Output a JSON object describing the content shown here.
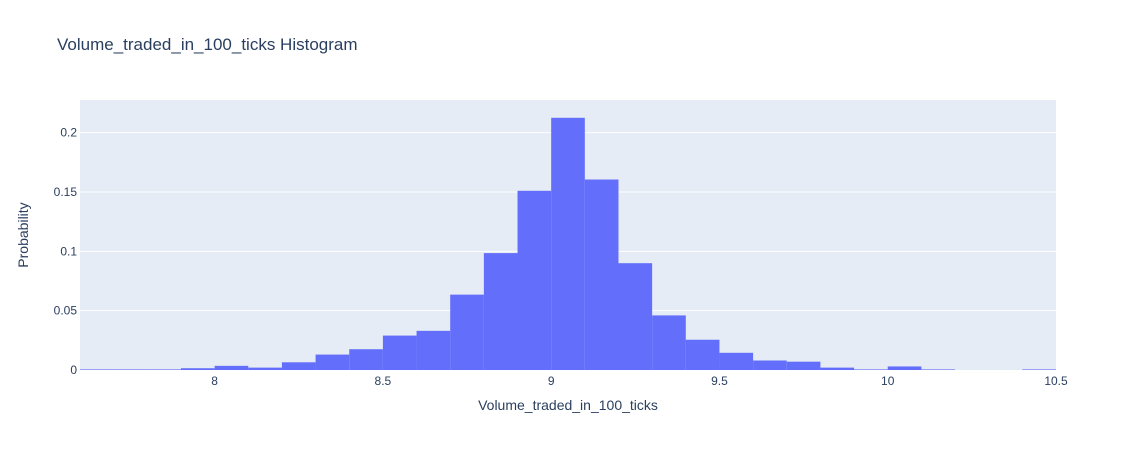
{
  "chart_data": {
    "type": "bar",
    "histnorm": "probability",
    "title": "Volume_traded_in_100_ticks Histogram",
    "xlabel": "Volume_traded_in_100_ticks",
    "ylabel": "Probability",
    "xlim": [
      7.6,
      10.5
    ],
    "ylim": [
      0,
      0.2275
    ],
    "x_ticks": [
      8,
      8.5,
      9,
      9.5,
      10,
      10.5
    ],
    "x_tick_labels": [
      "8",
      "8.5",
      "9",
      "9.5",
      "10",
      "10.5"
    ],
    "y_ticks": [
      0,
      0.05,
      0.1,
      0.15,
      0.2
    ],
    "y_tick_labels": [
      "0",
      "0.05",
      "0.1",
      "0.15",
      "0.2"
    ],
    "bins": [
      {
        "x0": 7.6,
        "x1": 7.7,
        "y": 0.0005
      },
      {
        "x0": 7.7,
        "x1": 7.8,
        "y": 0.0005
      },
      {
        "x0": 7.8,
        "x1": 7.9,
        "y": 0.0005
      },
      {
        "x0": 7.9,
        "x1": 8.0,
        "y": 0.0015
      },
      {
        "x0": 8.0,
        "x1": 8.1,
        "y": 0.0035
      },
      {
        "x0": 8.1,
        "x1": 8.2,
        "y": 0.002
      },
      {
        "x0": 8.2,
        "x1": 8.3,
        "y": 0.0065
      },
      {
        "x0": 8.3,
        "x1": 8.4,
        "y": 0.013
      },
      {
        "x0": 8.4,
        "x1": 8.5,
        "y": 0.0175
      },
      {
        "x0": 8.5,
        "x1": 8.6,
        "y": 0.029
      },
      {
        "x0": 8.6,
        "x1": 8.7,
        "y": 0.033
      },
      {
        "x0": 8.7,
        "x1": 8.8,
        "y": 0.0635
      },
      {
        "x0": 8.8,
        "x1": 8.9,
        "y": 0.0985
      },
      {
        "x0": 8.9,
        "x1": 9.0,
        "y": 0.151
      },
      {
        "x0": 9.0,
        "x1": 9.1,
        "y": 0.2125
      },
      {
        "x0": 9.1,
        "x1": 9.2,
        "y": 0.1605
      },
      {
        "x0": 9.2,
        "x1": 9.3,
        "y": 0.09
      },
      {
        "x0": 9.3,
        "x1": 9.4,
        "y": 0.046
      },
      {
        "x0": 9.4,
        "x1": 9.5,
        "y": 0.0255
      },
      {
        "x0": 9.5,
        "x1": 9.6,
        "y": 0.0145
      },
      {
        "x0": 9.6,
        "x1": 9.7,
        "y": 0.008
      },
      {
        "x0": 9.7,
        "x1": 9.8,
        "y": 0.007
      },
      {
        "x0": 9.8,
        "x1": 9.9,
        "y": 0.002
      },
      {
        "x0": 9.9,
        "x1": 10.0,
        "y": 0.0005
      },
      {
        "x0": 10.0,
        "x1": 10.1,
        "y": 0.003
      },
      {
        "x0": 10.1,
        "x1": 10.2,
        "y": 0.0005
      },
      {
        "x0": 10.4,
        "x1": 10.5,
        "y": 0.0005
      }
    ],
    "grid": true,
    "colors": {
      "bar": "#636efa",
      "plot_bg": "#e5ecf6",
      "grid": "#ffffff",
      "text": "#2a3f5f"
    }
  }
}
